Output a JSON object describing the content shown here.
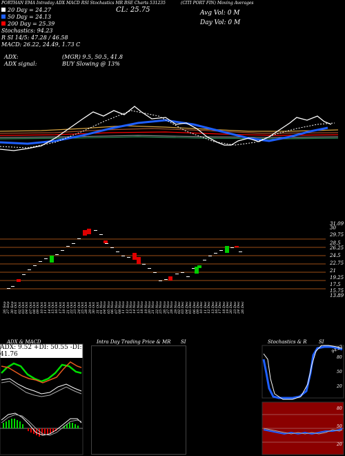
{
  "header": {
    "top_left": "PORTHAN EMA Intraday ADX MACD RSI Stochastics MR BSE Charts 531235",
    "company": "(CITI PORT FIN) Moving Averages",
    "cl_label": "CL: 25.75",
    "avg_vol": "Avg Vol: 0  M",
    "day_vol": "Day Vol: 0  M",
    "ema_lines": [
      "20  Day = 24.27",
      "50  Day = 24.13",
      "200  Day = 25.39"
    ],
    "stats": [
      "Stochastics: 94.23",
      "R         SI 14/5: 47.28 / 46.58",
      "MACD: 26.22, 24.49, 1.73 C"
    ],
    "adx_label": "ADX:",
    "adx_signal": "ADX   signal:",
    "mgr": "(MGR) 9.5, 50.5, 41.8",
    "buy": "BUY Slowing @ 13%"
  },
  "price_axis": [
    "31.09",
    "30",
    "29.75",
    "28.5",
    "26.25",
    "24.5",
    "22.75",
    "21",
    "19.25",
    "17.5",
    "15.75",
    "13.89"
  ],
  "dates": [
    "26 Sep",
    "27 Sep",
    "30 Sep",
    "01 Oct",
    "02 Oct",
    "03 Oct",
    "04 Oct",
    "07 Oct",
    "08 Oct",
    "09 Oct",
    "10 Oct",
    "11 Oct",
    "14 Oct",
    "15 Oct",
    "16 Oct",
    "17 Oct",
    "18 Oct",
    "21 Oct",
    "22 Oct",
    "23 Oct",
    "24 Oct",
    "25 Oct",
    "28 Oct",
    "29 Oct",
    "30 Oct",
    "31 Oct",
    "01 Nov",
    "04 Nov",
    "05 Nov",
    "06 Nov",
    "07 Nov",
    "08 Nov",
    "11 Nov",
    "12 Nov",
    "13 Nov",
    "14 Nov",
    "15 Nov",
    "18 Nov",
    "19 Nov",
    "20 Nov",
    "21 Nov",
    "22 Nov",
    "25 Nov",
    "26 Nov",
    "27 Nov",
    "28 Nov",
    "29 Nov",
    "02 Dec",
    "03 Dec",
    "04 Dec",
    "05 Dec",
    "06 Dec",
    "09 Dec",
    "10 Dec",
    "11 Dec",
    "12 Dec",
    "13 Dec",
    "16 Dec",
    "17 Dec",
    "18 Dec",
    "19 Dec",
    "20 Dec",
    "23 Dec",
    "24 Dec",
    "26 Dec"
  ],
  "panels": {
    "adx_title": "ADX  & MACD",
    "adx_box": "ADX: 9.52  +DI: 50.55  -DI: 41.76",
    "intra_title": "Intra  Day Trading Price  & MR",
    "intra_si": "SI",
    "stoch_title": "Stochastics & R",
    "stoch_si": "SI",
    "stoch_badge": "94.23",
    "stoch_axis": [
      "80",
      "50",
      "20"
    ],
    "rsi_axis": [
      "80",
      "50",
      "20"
    ]
  },
  "colors": {
    "up": "#00cc00",
    "down": "#e00000",
    "ema_blue": "#1e5fff",
    "rsi_red": "#8b0000"
  }
}
